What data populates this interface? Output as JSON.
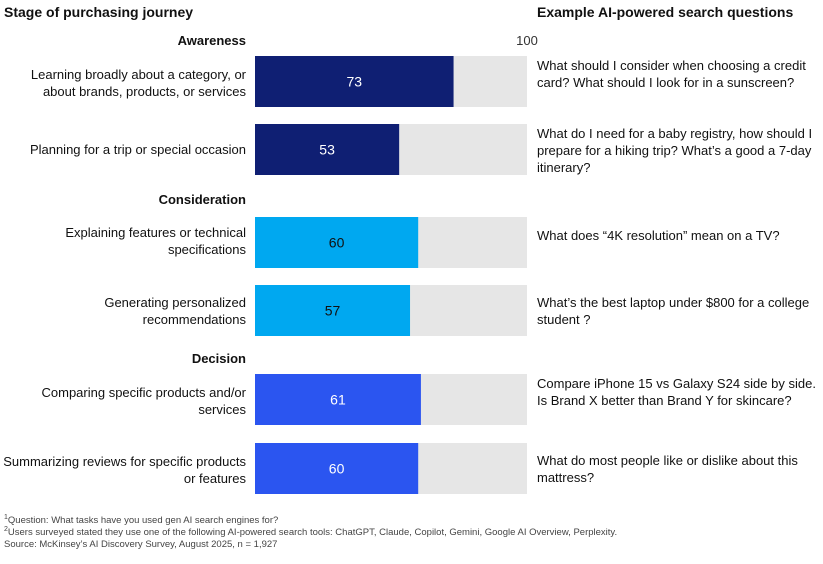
{
  "header": {
    "left": "Stage of purchasing journey",
    "right": "Example AI-powered search questions"
  },
  "groups": [
    "Awareness",
    "Consideration",
    "Decision"
  ],
  "rows": [
    {
      "label": "Learning broadly about a category, or about brands, products, or services",
      "question": "What should I consider when choosing a credit card? What should I look for in a sunscreen?"
    },
    {
      "label": "Planning for a trip or special occasion",
      "question": "What do I need for a baby registry, how should I prepare for a hiking trip? What’s a good a 7-day itinerary?"
    },
    {
      "label": "Explaining features or technical specifications",
      "question": "What does “4K resolution” mean on a TV?"
    },
    {
      "label": "Generating personalized recommendations",
      "question": "What’s the best laptop under $800 for a college student ?"
    },
    {
      "label": "Comparing specific products and/or services",
      "question": "Compare iPhone 15 vs Galaxy S24 side by side. Is Brand X better than Brand Y for skincare?"
    },
    {
      "label": "Summarizing reviews for specific products or features",
      "question": "What do most people like or dislike about this mattress?"
    }
  ],
  "chart_data": {
    "type": "bar",
    "orientation": "horizontal",
    "categories": [
      "Learning broadly about a category, or about brands, products, or services",
      "Planning for a trip or special occasion",
      "Explaining features or technical specifications",
      "Generating personalized recommendations",
      "Comparing specific products and/or services",
      "Summarizing reviews for specific products or features"
    ],
    "values": [
      73,
      53,
      60,
      57,
      61,
      60
    ],
    "groups": [
      "Awareness",
      "Awareness",
      "Consideration",
      "Consideration",
      "Decision",
      "Decision"
    ],
    "max_label": "100",
    "xlim": [
      0,
      100
    ],
    "colors": {
      "Awareness": "#0f1f73",
      "Consideration": "#00a8f0",
      "Decision": "#2b55f0",
      "track": "#e6e6e6"
    },
    "value_label_colors": {
      "Awareness": "#ffffff",
      "Consideration": "#111111",
      "Decision": "#ffffff"
    }
  },
  "notes": {
    "note1_mark": "1",
    "note1": "Question: What tasks have you used gen AI search engines for?",
    "note2_mark": "2",
    "note2": "Users surveyed stated they use one of the following AI-powered search tools: ChatGPT, Claude, Copilot, Gemini, Google AI Overview, Perplexity.",
    "source": "Source: McKinsey’s AI Discovery Survey, August 2025, n = 1,927"
  }
}
